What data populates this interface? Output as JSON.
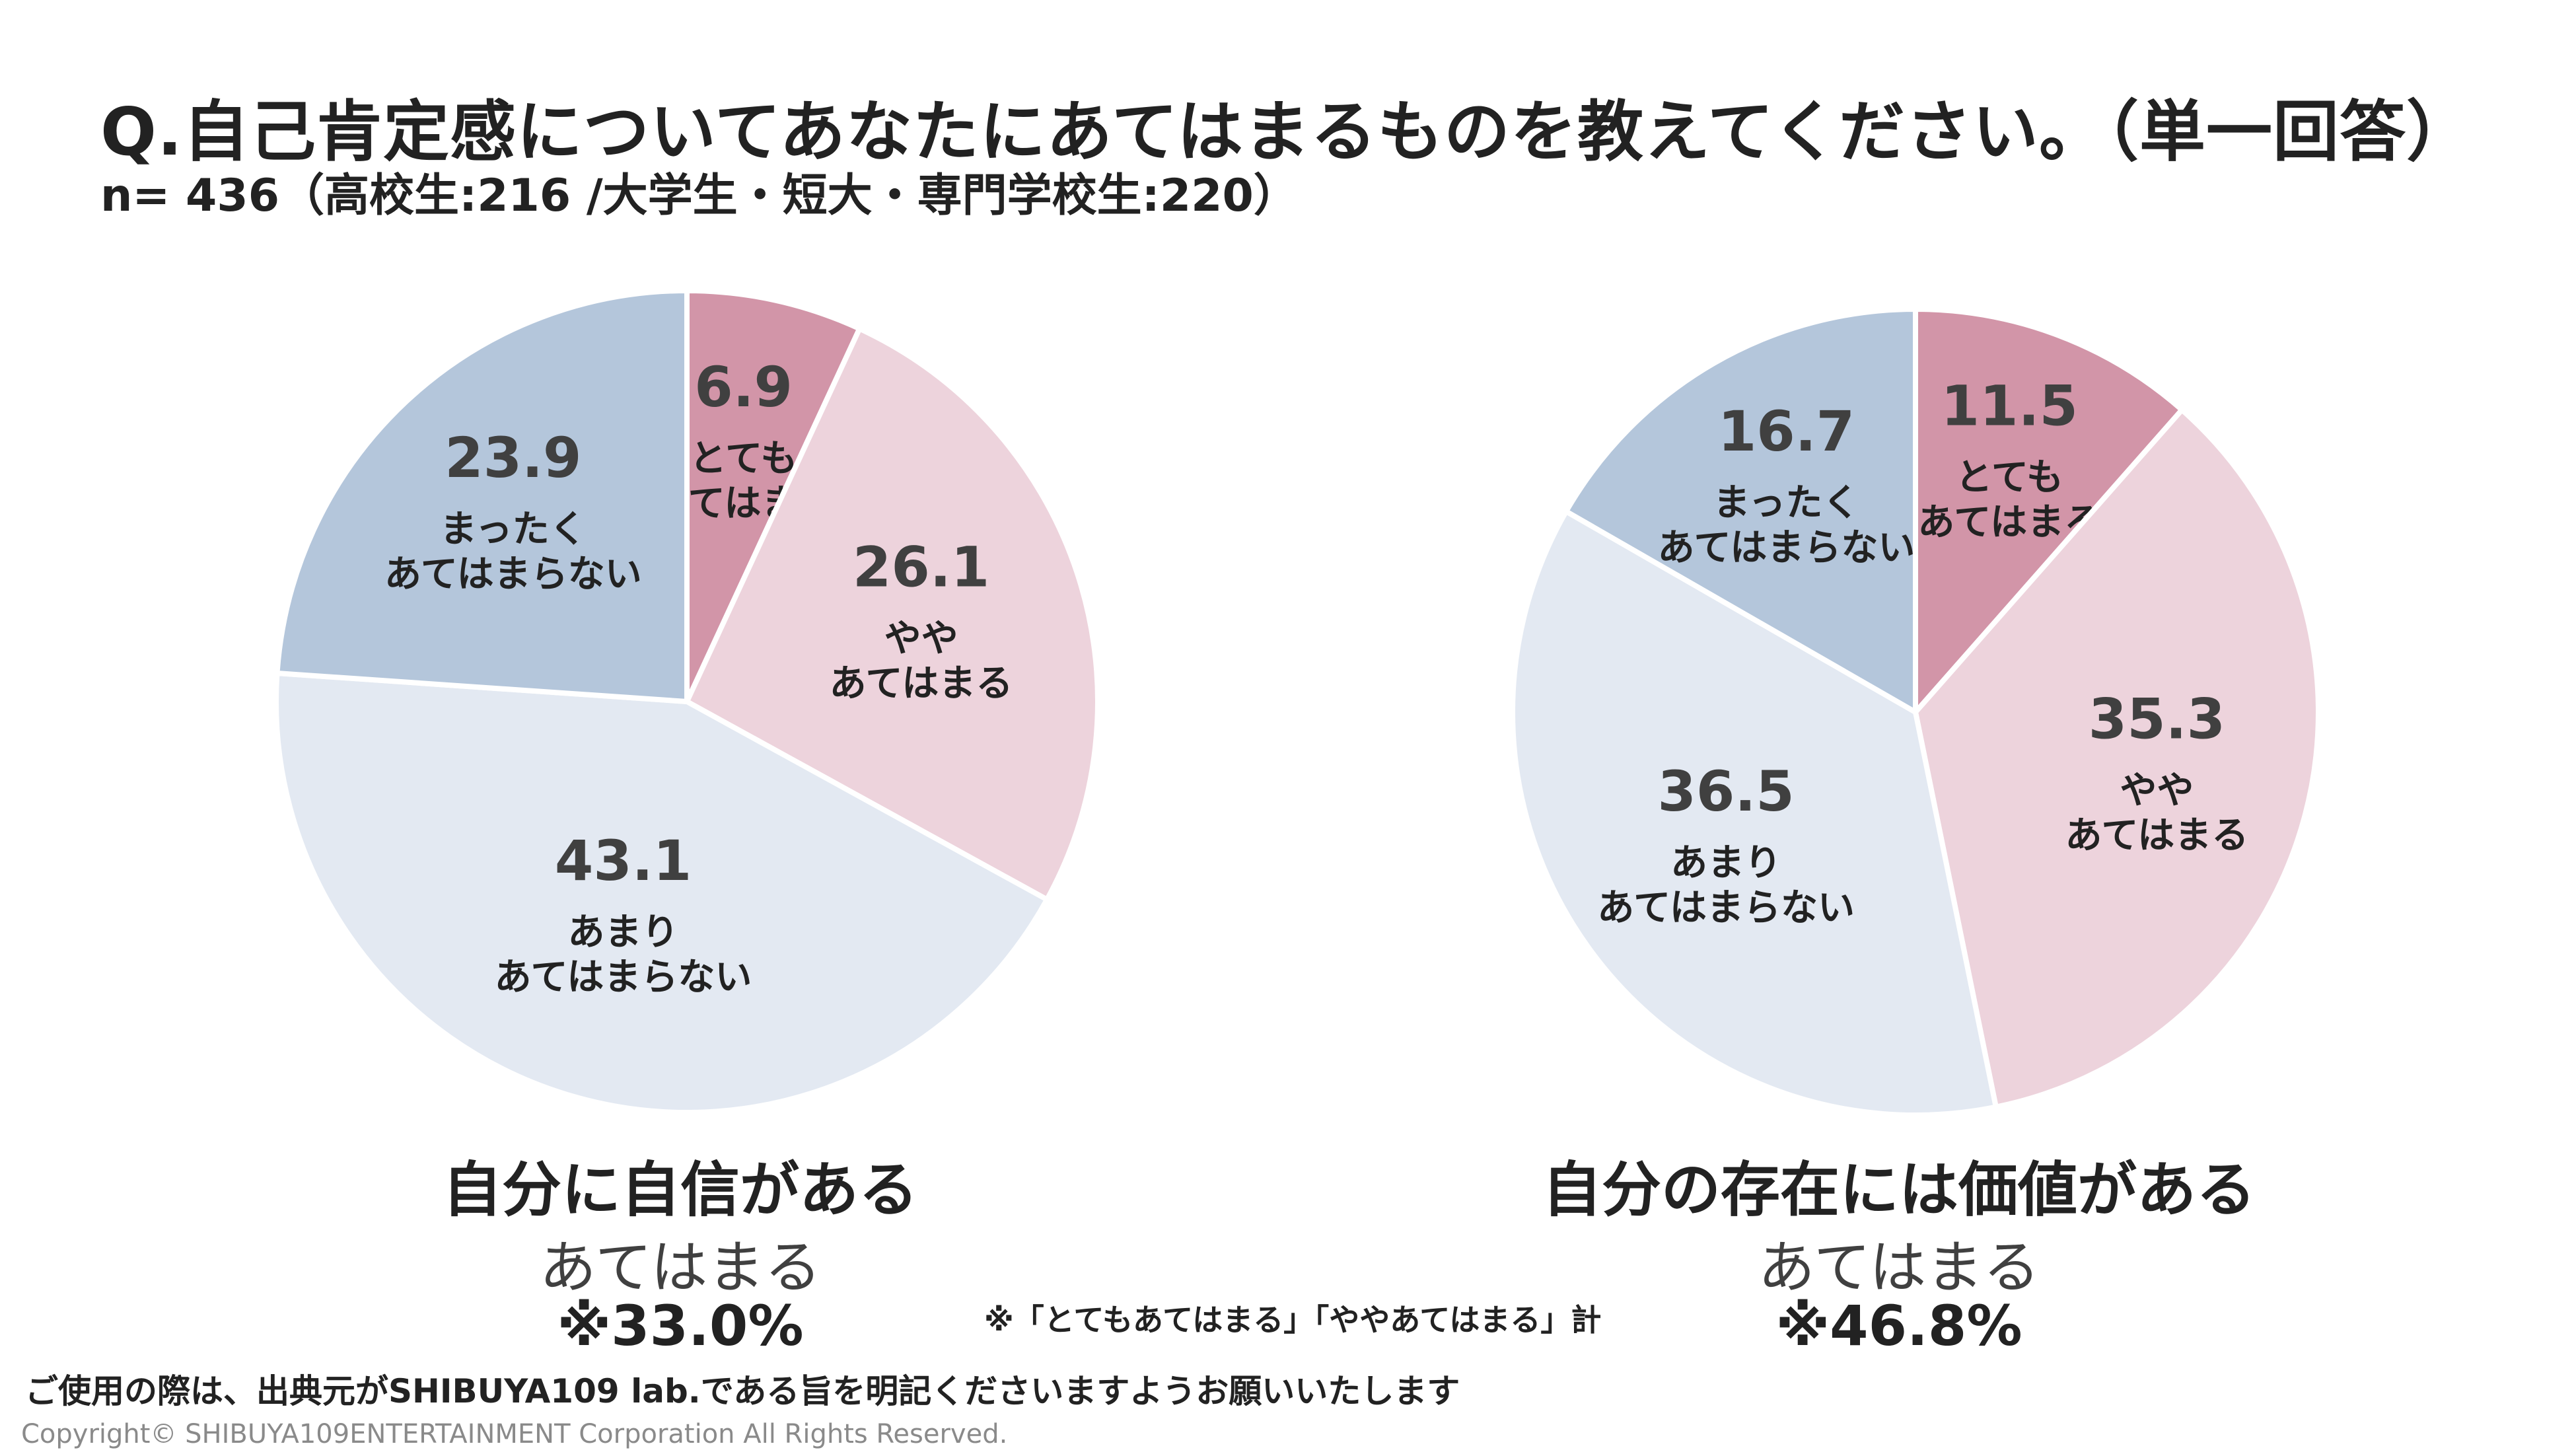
{
  "header": {
    "title": "Q.自己肯定感についてあなたにあてはまるものを教えてください。（単一回答）",
    "subtitle": "n= 436（高校生:216 /大学生・短大・専門学校生:220）"
  },
  "chart_data": [
    {
      "type": "pie",
      "title": "自分に自信がある",
      "unit": "%",
      "slices": [
        {
          "value": 6.9,
          "value_label": "6.9",
          "label_lines": [
            "とても",
            "あてはまる"
          ],
          "color": "#D295A8"
        },
        {
          "value": 26.1,
          "value_label": "26.1",
          "label_lines": [
            "やや",
            "あてはまる"
          ],
          "color": "#EDD3DC"
        },
        {
          "value": 43.1,
          "value_label": "43.1",
          "label_lines": [
            "あまり",
            "あてはまらない"
          ],
          "color": "#E3E9F2"
        },
        {
          "value": 23.9,
          "value_label": "23.9",
          "label_lines": [
            "まったく",
            "あてはまらない"
          ],
          "color": "#B4C6DB"
        }
      ],
      "summary_label": "あてはまる",
      "summary_value": "※33.0%"
    },
    {
      "type": "pie",
      "title": "自分の存在には価値がある",
      "unit": "%",
      "slices": [
        {
          "value": 11.5,
          "value_label": "11.5",
          "label_lines": [
            "とても",
            "あてはまる"
          ],
          "color": "#D295A8"
        },
        {
          "value": 35.3,
          "value_label": "35.3",
          "label_lines": [
            "やや",
            "あてはまる"
          ],
          "color": "#EDD3DC"
        },
        {
          "value": 36.5,
          "value_label": "36.5",
          "label_lines": [
            "あまり",
            "あてはまらない"
          ],
          "color": "#E3E9F2"
        },
        {
          "value": 16.7,
          "value_label": "16.7",
          "label_lines": [
            "まったく",
            "あてはまらない"
          ],
          "color": "#B4C6DB"
        }
      ],
      "summary_label": "あてはまる",
      "summary_value": "※46.8%"
    }
  ],
  "note": "※「とてもあてはまる」「ややあてはまる」計",
  "footer": {
    "notice": "ご使用の際は、出典元がSHIBUYA109 lab.である旨を明記くださいますようお願いいたします",
    "copyright": "Copyright© SHIBUYA109ENTERTAINMENT Corporation All Rights Reserved."
  }
}
